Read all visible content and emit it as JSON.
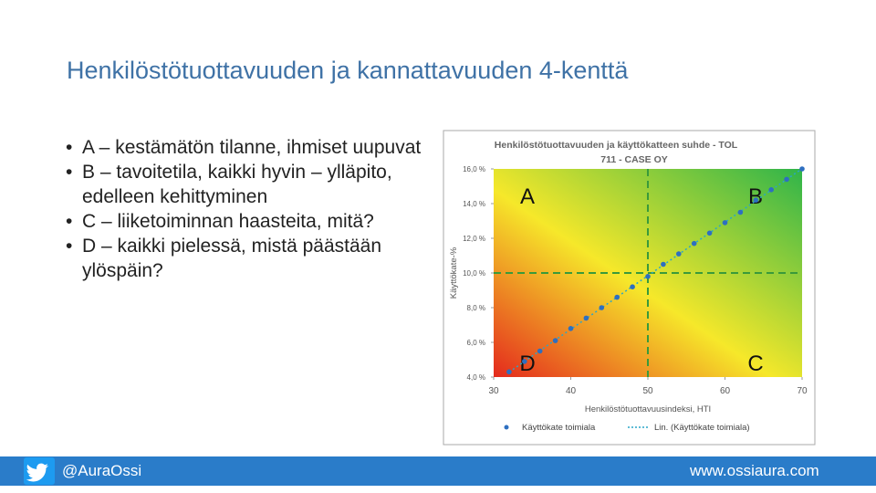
{
  "slide": {
    "title": "Henkilöstötuottavuuden ja kannattavuuden 4-kenttä",
    "bullets": [
      "A – kestämätön tilanne, ihmiset uupuvat",
      "B – tavoitetila, kaikki hyvin – ylläpito, edelleen kehittyminen",
      "C – liiketoiminnan haasteita, mitä?",
      "D – kaikki pielessä, mistä päästään ylöspäin?"
    ],
    "footer": {
      "handle": "@AuraOssi",
      "url": "www.ossiaura.com"
    }
  },
  "chart_data": {
    "type": "scatter",
    "title": [
      "Henkilöstötuottavuuden ja käyttökatteen suhde - TOL",
      "711 - CASE OY"
    ],
    "x_label": "Henkilöstötuottavuusindeksi, HTI",
    "y_label": "Käyttökate-%",
    "xlim": [
      30,
      70
    ],
    "xticks": [
      30,
      40,
      50,
      60,
      70
    ],
    "ylim": [
      4,
      16
    ],
    "yticks": [
      {
        "value": 4,
        "label": "4,0 %"
      },
      {
        "value": 6,
        "label": "6,0 %"
      },
      {
        "value": 8,
        "label": "8,0 %"
      },
      {
        "value": 10,
        "label": "10,0 %"
      },
      {
        "value": 12,
        "label": "12,0 %"
      },
      {
        "value": 14,
        "label": "14,0 %"
      },
      {
        "value": 16,
        "label": "16,0 %"
      }
    ],
    "reference_lines": {
      "x": 50,
      "y": 10
    },
    "quadrant_labels": [
      "A",
      "B",
      "C",
      "D"
    ],
    "series": [
      {
        "name": "Käyttökate toimiala",
        "color": "#2e6fc0",
        "x": [
          32,
          34,
          36,
          38,
          40,
          42,
          44,
          46,
          48,
          50,
          52,
          54,
          56,
          58,
          60,
          62,
          64,
          66,
          68,
          70
        ],
        "values": [
          4.3,
          4.9,
          5.5,
          6.1,
          6.8,
          7.4,
          8.0,
          8.6,
          9.2,
          9.8,
          10.5,
          11.1,
          11.7,
          12.3,
          12.9,
          13.5,
          14.2,
          14.8,
          15.4,
          16.0
        ]
      }
    ],
    "trendline_label": "Lin. (Käyttökate toimiala)"
  }
}
